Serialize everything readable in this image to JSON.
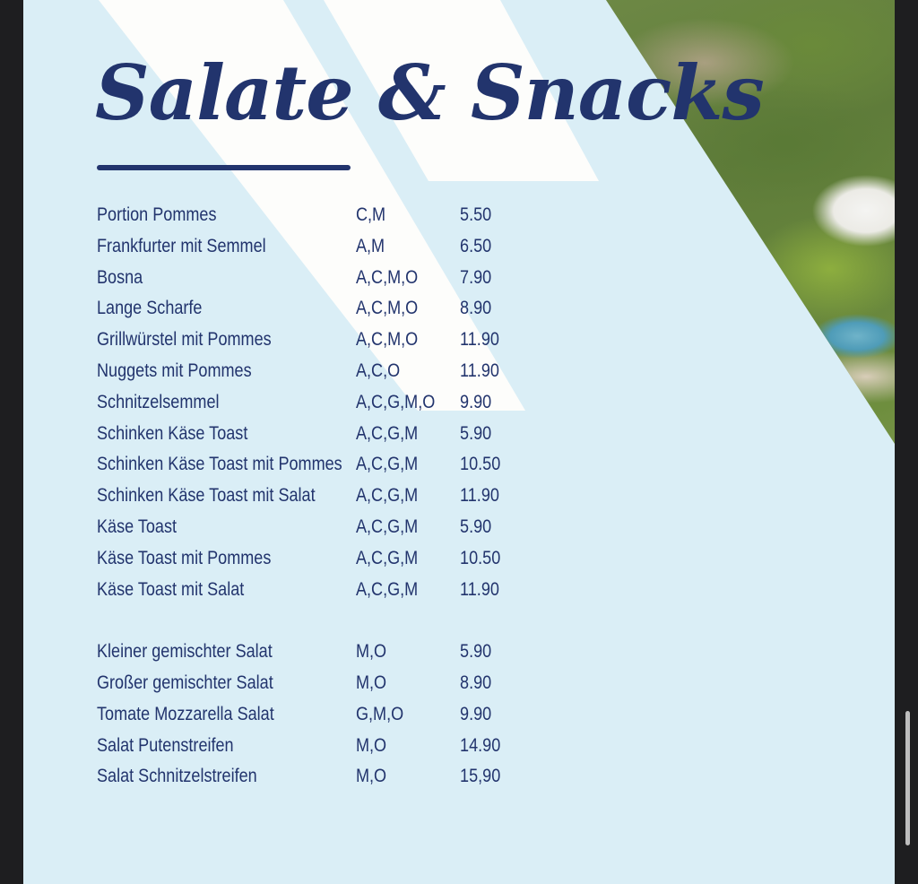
{
  "menu": {
    "title": "Salate & Snacks",
    "snacks": [
      {
        "name": "Portion Pommes",
        "allergens": "C,M",
        "price": "5.50"
      },
      {
        "name": "Frankfurter mit Semmel",
        "allergens": "A,M",
        "price": "6.50"
      },
      {
        "name": "Bosna",
        "allergens": "A,C,M,O",
        "price": "7.90"
      },
      {
        "name": "Lange Scharfe",
        "allergens": "A,C,M,O",
        "price": "8.90"
      },
      {
        "name": "Grillwürstel mit Pommes",
        "allergens": "A,C,M,O",
        "price": "11.90"
      },
      {
        "name": "Nuggets mit Pommes",
        "allergens": "A,C,O",
        "price": "11.90"
      },
      {
        "name": "Schnitzelsemmel",
        "allergens": "A,C,G,M,O",
        "price": "9.90"
      },
      {
        "name": "Schinken Käse Toast",
        "allergens": "A,C,G,M",
        "price": "5.90"
      },
      {
        "name": "Schinken Käse Toast mit Pommes",
        "allergens": "A,C,G,M",
        "price": "10.50"
      },
      {
        "name": "Schinken Käse Toast mit Salat",
        "allergens": "A,C,G,M",
        "price": "11.90"
      },
      {
        "name": "Käse Toast",
        "allergens": "A,C,G,M",
        "price": "5.90"
      },
      {
        "name": "Käse Toast mit Pommes",
        "allergens": "A,C,G,M",
        "price": "10.50"
      },
      {
        "name": "Käse Toast mit Salat",
        "allergens": "A,C,G,M",
        "price": "11.90"
      }
    ],
    "salads": [
      {
        "name": "Kleiner gemischter Salat",
        "allergens": "M,O",
        "price": "5.90"
      },
      {
        "name": "Großer gemischter Salat",
        "allergens": "M,O",
        "price": "8.90"
      },
      {
        "name": "Tomate Mozzarella Salat",
        "allergens": "G,M,O",
        "price": "9.90"
      },
      {
        "name": "Salat Putenstreifen",
        "allergens": "M,O",
        "price": "14.90"
      },
      {
        "name": "Salat Schnitzelstreifen",
        "allergens": "M,O",
        "price": "15,90"
      }
    ]
  },
  "colors": {
    "page_background": "#daeef6",
    "text": "#22346d",
    "viewer_background": "#1e1e20",
    "stripe": "#fdfdfb"
  }
}
